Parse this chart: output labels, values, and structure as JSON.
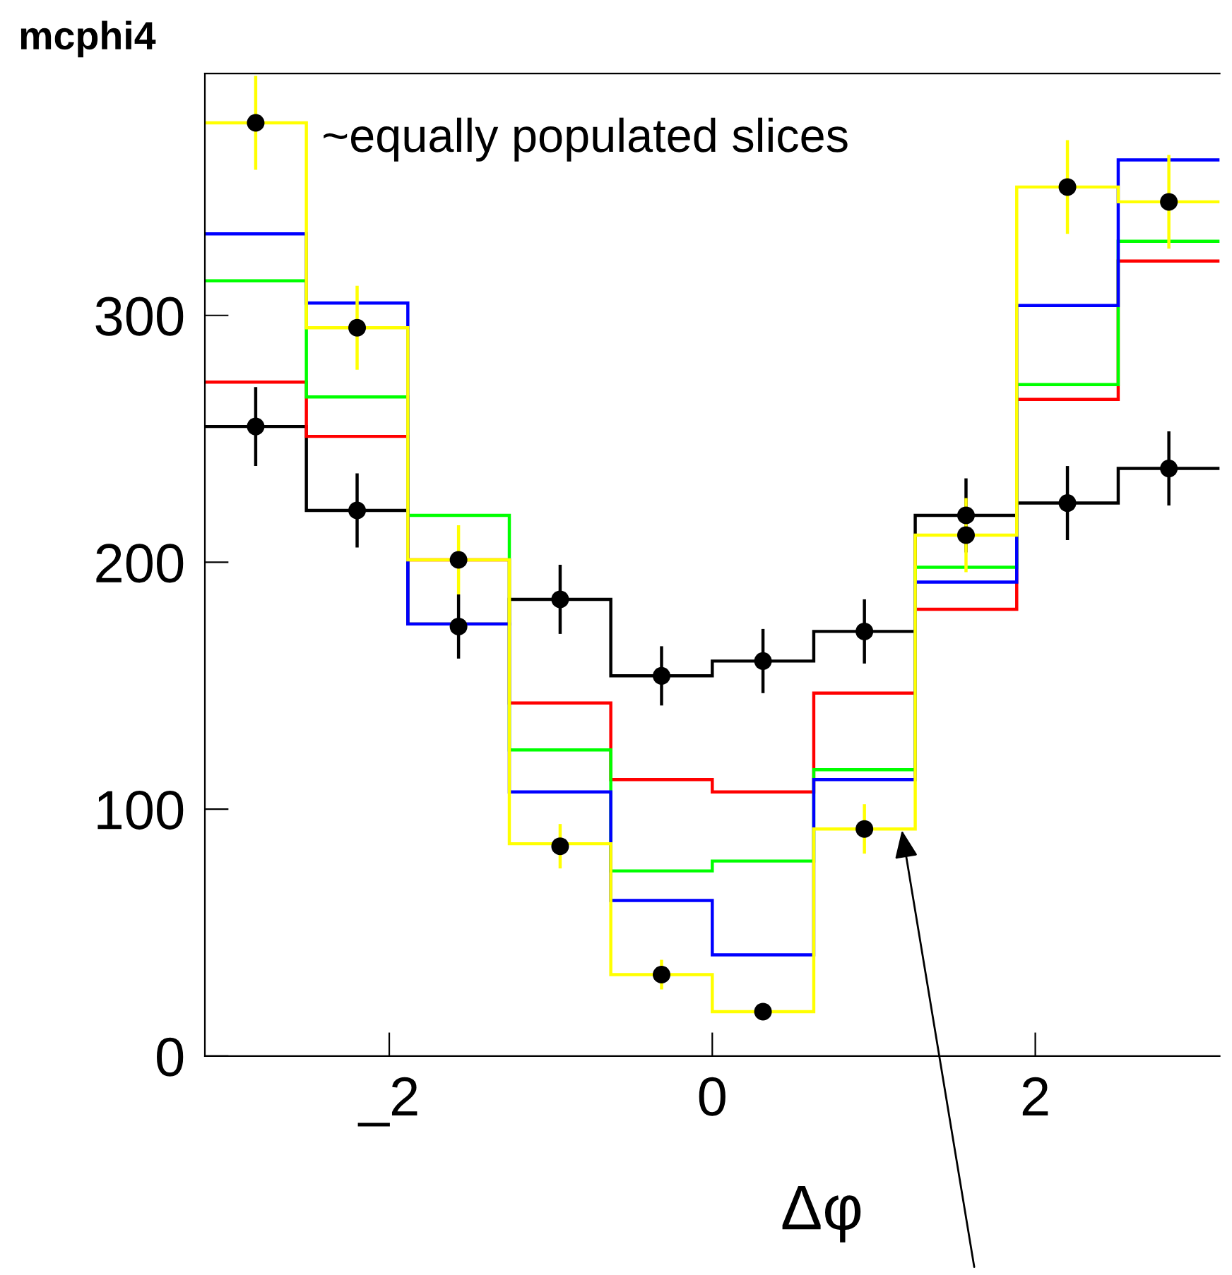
{
  "chart_data": {
    "type": "histogram",
    "title": "mcphi4",
    "xlabel": "Δφ",
    "annotations": [
      "~equally populated slices"
    ],
    "bins": [
      -3.1416,
      -2.5133,
      -1.885,
      -1.2566,
      -0.6283,
      0,
      0.6283,
      1.2566,
      1.885,
      2.5133,
      3.1416
    ],
    "series": [
      {
        "color": "#000000",
        "values": [
          255,
          221,
          175,
          185,
          154,
          160,
          172,
          219,
          224,
          238
        ]
      },
      {
        "color": "#ff0000",
        "values": [
          273,
          251,
          201,
          143,
          112,
          107,
          147,
          181,
          266,
          322
        ]
      },
      {
        "color": "#00ff00",
        "values": [
          314,
          267,
          219,
          124,
          75,
          79,
          116,
          198,
          272,
          330
        ]
      },
      {
        "color": "#0000ff",
        "values": [
          333,
          305,
          175,
          107,
          63,
          41,
          112,
          192,
          304,
          363
        ]
      },
      {
        "color": "#ffff00",
        "values": [
          378,
          295,
          201,
          86,
          33,
          18,
          92,
          211,
          352,
          346
        ]
      },
      {
        "type": "scatter",
        "marker": "circle",
        "color": "#000000",
        "x": [
          -2.827,
          -2.199,
          -1.571,
          -0.942,
          -0.314,
          0.314,
          0.942,
          1.571,
          2.199,
          2.827
        ],
        "values": [
          255,
          221,
          174,
          185,
          154,
          160,
          172,
          219,
          224,
          238
        ],
        "errors": [
          16,
          15,
          13,
          14,
          12,
          13,
          13,
          15,
          15,
          15
        ]
      },
      {
        "type": "scatter",
        "marker": "circle",
        "color": "#ffff00",
        "colors": [
          "#000000",
          "#000000",
          "#000000",
          "#000000",
          "#000000",
          "#000000",
          "#000000",
          "#000000",
          "#000000",
          "#000000"
        ],
        "x": [
          -2.827,
          -2.199,
          -1.571,
          -0.942,
          -0.314,
          0.314,
          0.942,
          1.571,
          2.199,
          2.827
        ],
        "values": [
          378,
          295,
          201,
          85,
          33,
          18,
          92,
          211,
          352,
          346
        ],
        "errors": [
          19,
          17,
          14,
          9,
          6,
          null,
          10,
          15,
          19,
          19
        ]
      }
    ],
    "xlim": [
      -3.1416,
      3.1416
    ],
    "ylim": [
      0,
      398
    ],
    "xticks": [
      {
        "value": -2,
        "label": "_2"
      },
      0,
      2
    ],
    "yticks": [
      0,
      100,
      200,
      300
    ],
    "grid": false,
    "legend": false
  }
}
